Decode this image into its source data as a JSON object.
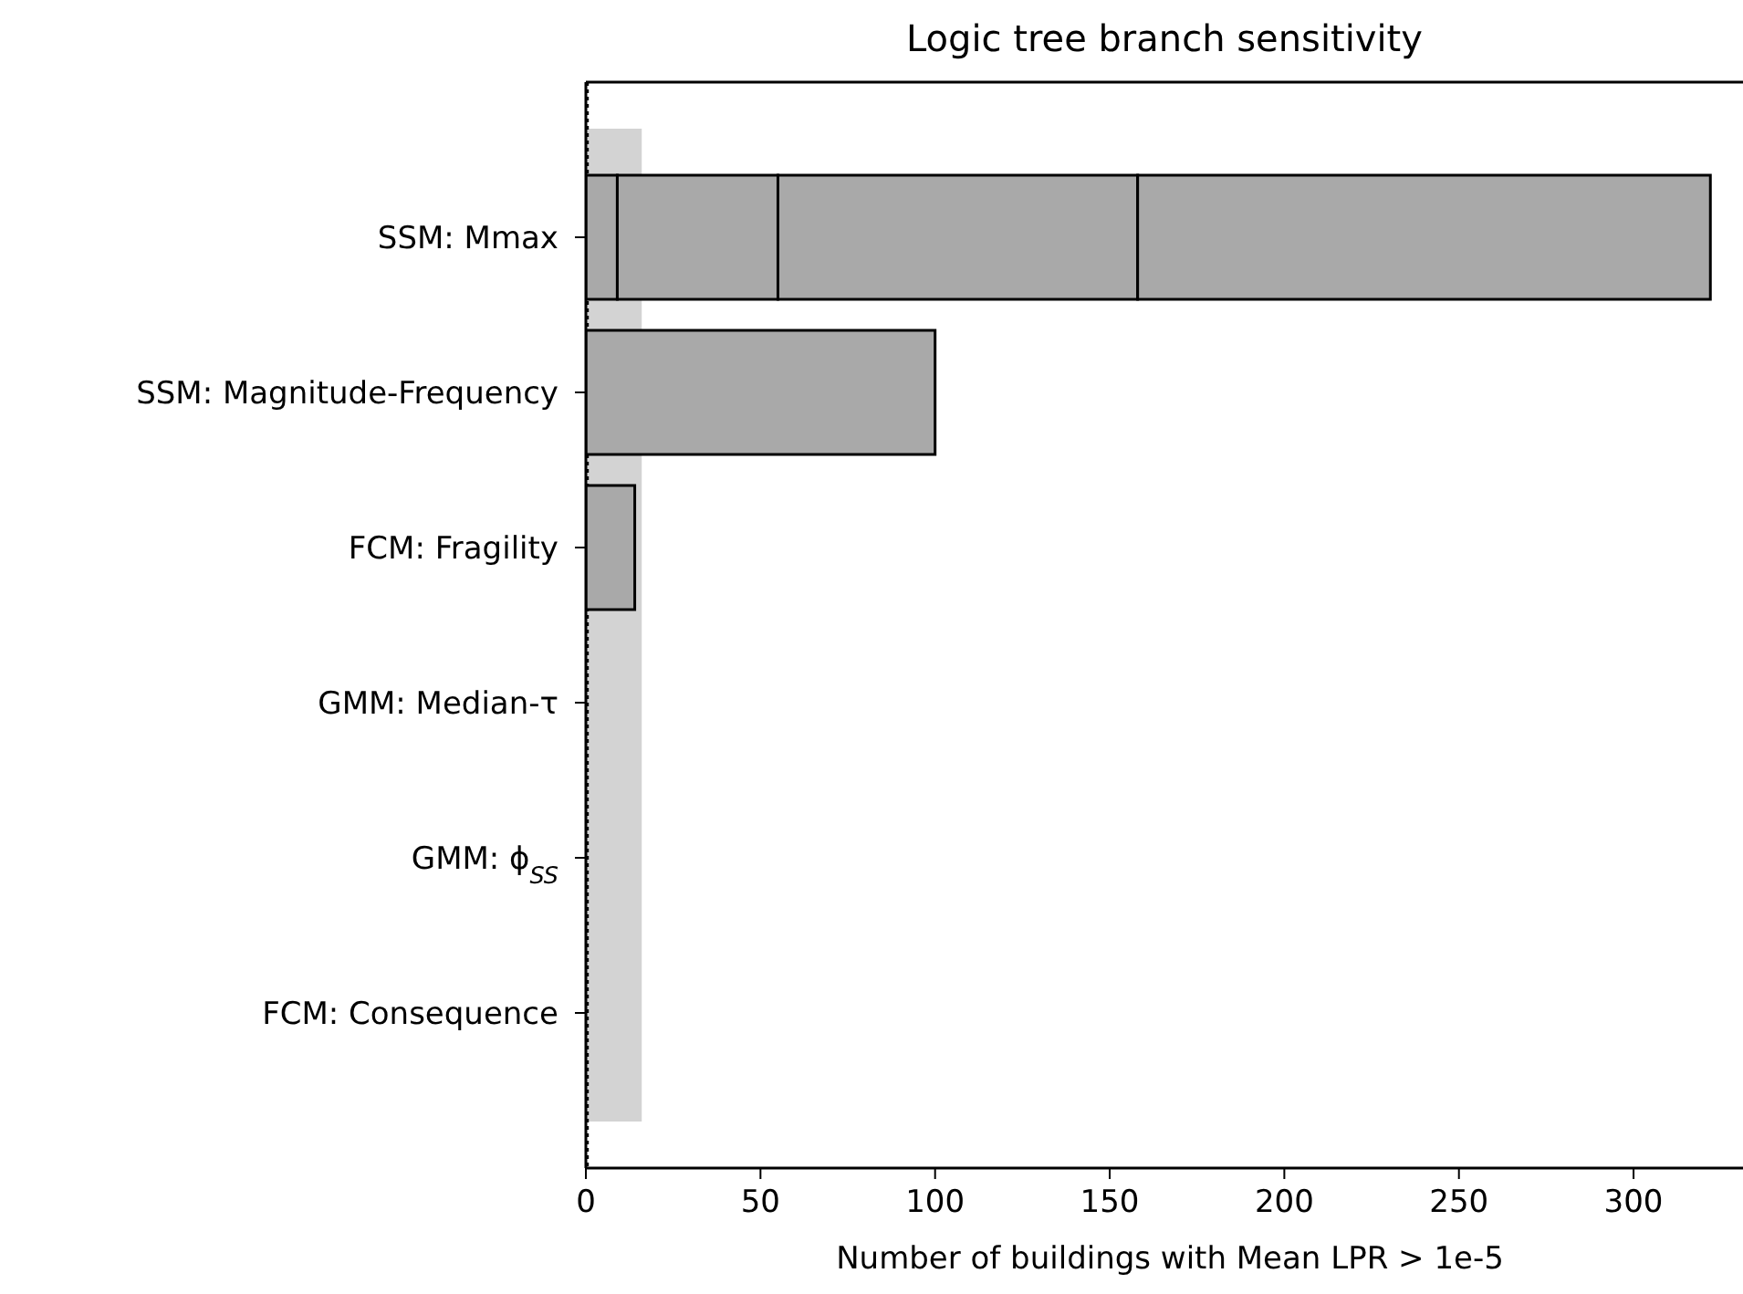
{
  "chart_data": {
    "type": "bar",
    "orientation": "horizontal",
    "stacked": true,
    "title": "Logic tree branch sensitivity",
    "xlabel": "Number of buildings with Mean LPR > 1e-5",
    "categories": [
      "SSM: Mmax",
      "SSM: Magnitude-Frequency",
      "FCM: Fragility",
      "GMM: Median-τ",
      "GMM: ϕ$_{SS}$",
      "FCM: Consequence"
    ],
    "series": [
      {
        "color": "#a9a9a9",
        "values": [
          9,
          100,
          14,
          null,
          null,
          null
        ]
      },
      {
        "color": "#a9a9a9",
        "values": [
          46,
          null,
          null,
          null,
          null,
          null
        ]
      },
      {
        "color": "#a9a9a9",
        "values": [
          103,
          null,
          null,
          null,
          null,
          null
        ]
      },
      {
        "color": "#a9a9a9",
        "values": [
          164,
          null,
          null,
          null,
          null,
          null
        ]
      }
    ],
    "xlim": [
      0,
      335
    ],
    "xticks": [
      0,
      50,
      100,
      150,
      200,
      250,
      300
    ],
    "bands": [
      {
        "axis": "x",
        "from": 0,
        "to": 16,
        "color": "#d3d3d3"
      }
    ],
    "ref_lines": [
      {
        "axis": "x",
        "value": 0,
        "color": "#000000",
        "line_style": "dotted"
      }
    ],
    "grid": false
  }
}
